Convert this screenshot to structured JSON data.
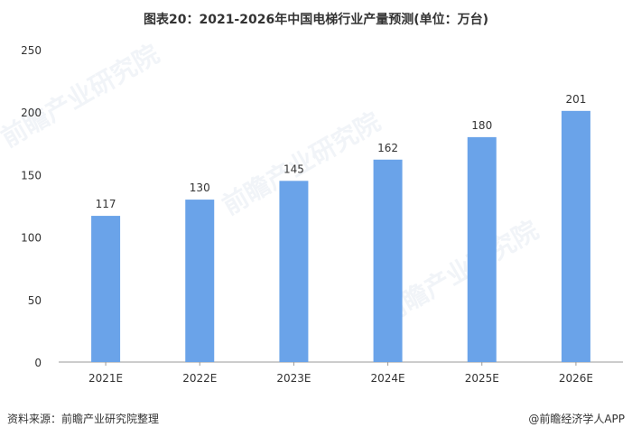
{
  "title": "图表20：2021-2026年中国电梯行业产量预测(单位：万台)",
  "source": "资料来源：前瞻产业研究院整理",
  "credit": "@前瞻经济学人APP",
  "watermark": "前瞻产业研究院",
  "colors": {
    "bar": "#6aa3e9",
    "axis": "#999999",
    "text": "#333333"
  },
  "chart_data": {
    "type": "bar",
    "title": "图表20：2021-2026年中国电梯行业产量预测(单位：万台)",
    "categories": [
      "2021E",
      "2022E",
      "2023E",
      "2024E",
      "2025E",
      "2026E"
    ],
    "values": [
      117,
      130,
      145,
      162,
      180,
      201
    ],
    "y_ticks": [
      0,
      50,
      100,
      150,
      200,
      250
    ],
    "ylim": [
      0,
      250
    ],
    "grid": false,
    "legend": "none"
  }
}
